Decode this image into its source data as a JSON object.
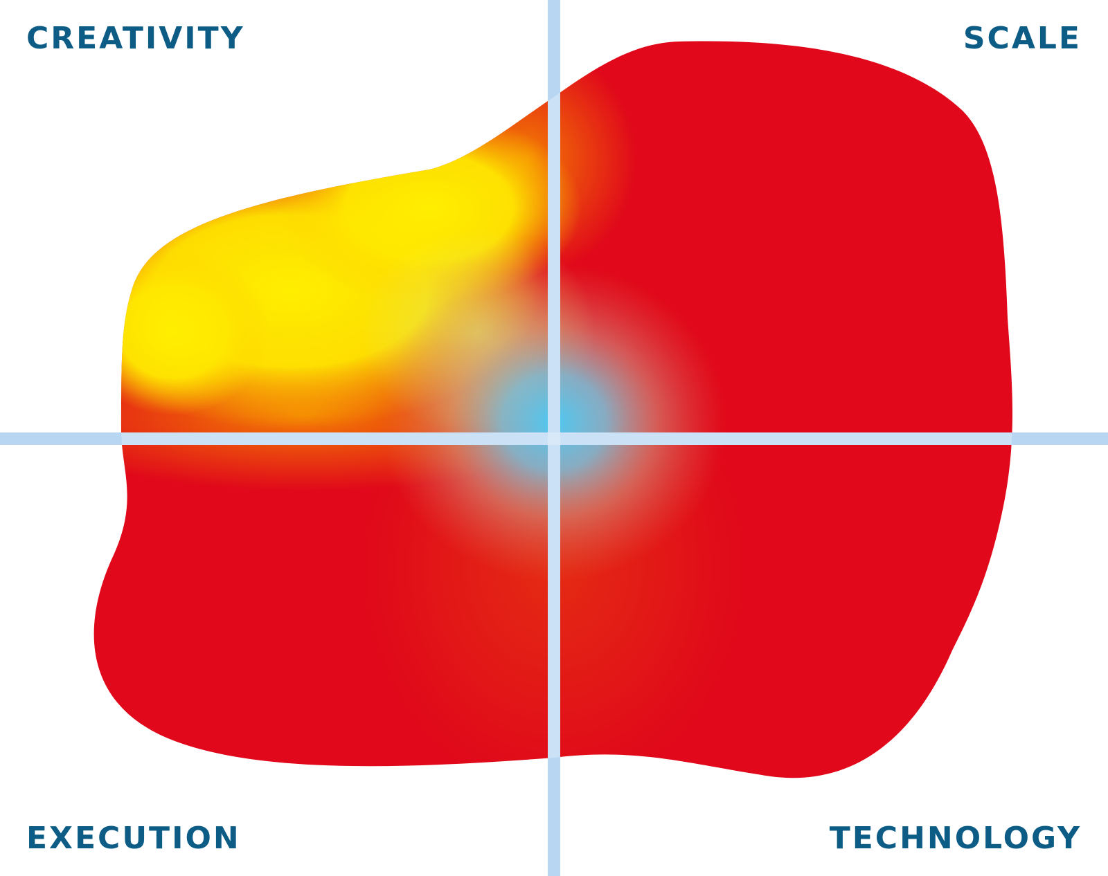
{
  "labels": {
    "top_left": "CREATIVITY",
    "top_right": "SCALE",
    "bottom_left": "EXECUTION",
    "bottom_right": "TECHNOLOGY"
  },
  "colors": {
    "label_text": "#0d5c86",
    "axis_line": "#b8d6f2",
    "blob_red": "#e0081a",
    "blob_yellow": "#ffec00",
    "blob_orange": "#f07a00",
    "center_blue": "#4fc6f0"
  }
}
